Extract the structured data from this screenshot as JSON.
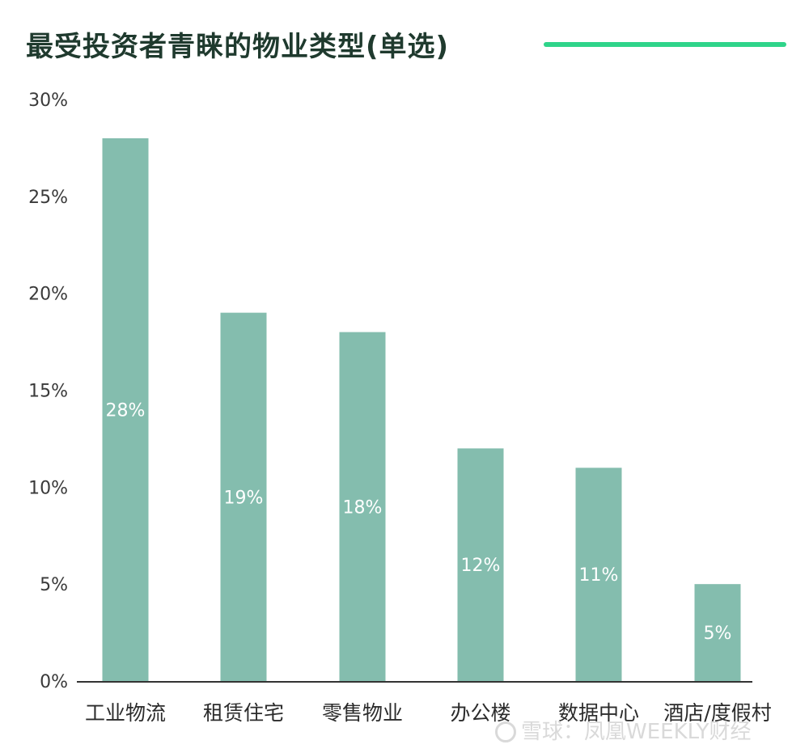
{
  "title": "最受投资者青睐的物业类型(单选)",
  "colors": {
    "bar": "#84bdae",
    "accent": "#2fd48a",
    "title": "#1f3a2e",
    "axis": "#333333"
  },
  "watermark": "雪球：凤凰WEEKLY财经",
  "chart_data": {
    "type": "bar",
    "title": "最受投资者青睐的物业类型(单选)",
    "categories": [
      "工业物流",
      "租赁住宅",
      "零售物业",
      "办公楼",
      "数据中心",
      "酒店/度假村"
    ],
    "values": [
      28,
      19,
      18,
      12,
      11,
      5
    ],
    "value_labels": [
      "28%",
      "19%",
      "18%",
      "12%",
      "11%",
      "5%"
    ],
    "ylim": [
      0,
      30
    ],
    "yticks": [
      0,
      5,
      10,
      15,
      20,
      25,
      30
    ],
    "ytick_labels": [
      "0%",
      "5%",
      "10%",
      "15%",
      "20%",
      "25%",
      "30%"
    ],
    "xlabel": "",
    "ylabel": "",
    "grid": false,
    "legend": false
  }
}
